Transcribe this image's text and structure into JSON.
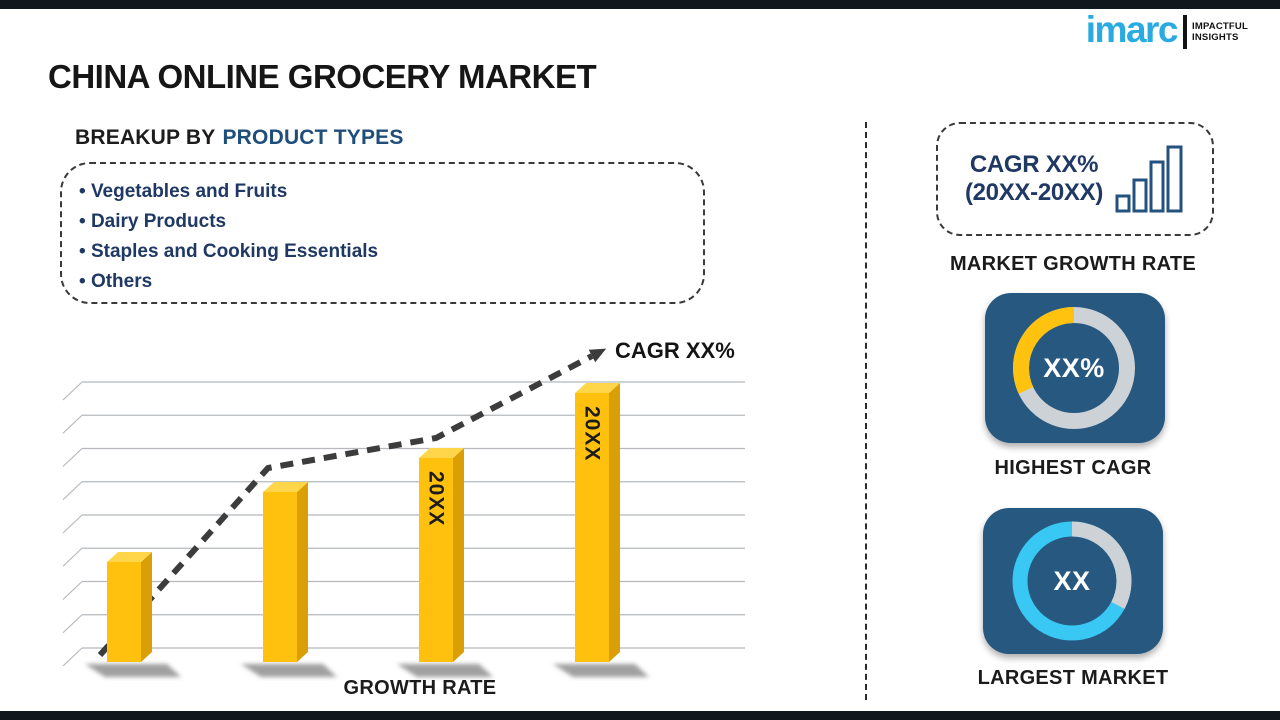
{
  "page": {
    "title": "CHINA ONLINE GROCERY MARKET"
  },
  "logo": {
    "brand": "imarc",
    "tagline_line1": "IMPACTFUL",
    "tagline_line2": "INSIGHTS",
    "brand_color": "#29ABE2"
  },
  "breakup": {
    "heading_prefix": "BREAKUP BY",
    "heading_highlight": "PRODUCT TYPES",
    "items": [
      "Vegetables and Fruits",
      "Dairy Products",
      "Staples and Cooking Essentials",
      "Others"
    ]
  },
  "chart_data": [
    {
      "id": "growth-rate-bar-chart",
      "type": "bar",
      "values": [
        100,
        170,
        204,
        269
      ],
      "bar_labels": [
        "",
        "",
        "20XX",
        "20XX"
      ],
      "xlabel": "GROWTH RATE",
      "ylim": [
        0,
        290
      ],
      "grid": true,
      "gridline_count": 9,
      "bar_color": "#FFC10E",
      "trend_line": {
        "style": "dashed-arrow",
        "label": "CAGR XX%"
      }
    },
    {
      "id": "highest-cagr-donut",
      "type": "pie",
      "center_label": "XX%",
      "slices": [
        {
          "name": "highlighted-share",
          "value": 32,
          "color": "#FFC20E"
        },
        {
          "name": "remainder",
          "value": 68,
          "color": "#CDD2D6"
        }
      ]
    },
    {
      "id": "largest-market-donut",
      "type": "pie",
      "center_label": "XX",
      "slices": [
        {
          "name": "highlighted-share",
          "value": 67,
          "color": "#38C8F3"
        },
        {
          "name": "remainder",
          "value": 33,
          "color": "#CDD2D6"
        }
      ]
    }
  ],
  "right_panel": {
    "growth_box": {
      "line1": "CAGR XX%",
      "line2": "(20XX-20XX)",
      "icon": "ascending-bars-icon"
    },
    "market_growth_label": "MARKET GROWTH RATE",
    "highest_cagr": {
      "value": "XX%",
      "label": "HIGHEST CAGR",
      "base_color": "#CDD2D6",
      "arc_color": "#FFC20E",
      "arc_start_deg": 245,
      "arc_end_deg": 360
    },
    "largest_market": {
      "value": "XX",
      "label": "LARGEST MARKET",
      "base_color": "#38C8F3",
      "arc_color": "#CDD2D6",
      "arc_start_deg": 0,
      "arc_end_deg": 118
    }
  },
  "colors": {
    "bar_top_face": "#FFD64A",
    "bar_side_face": "#DA9E07",
    "navy_text": "#1F3864",
    "heading_blue": "#1F4E7B",
    "tile_blue": "#275880",
    "frame_bar": "#10181D",
    "gridline": "#B5B9BD",
    "trend": "#3C3C3C",
    "shadow": "#3F3F3F"
  }
}
